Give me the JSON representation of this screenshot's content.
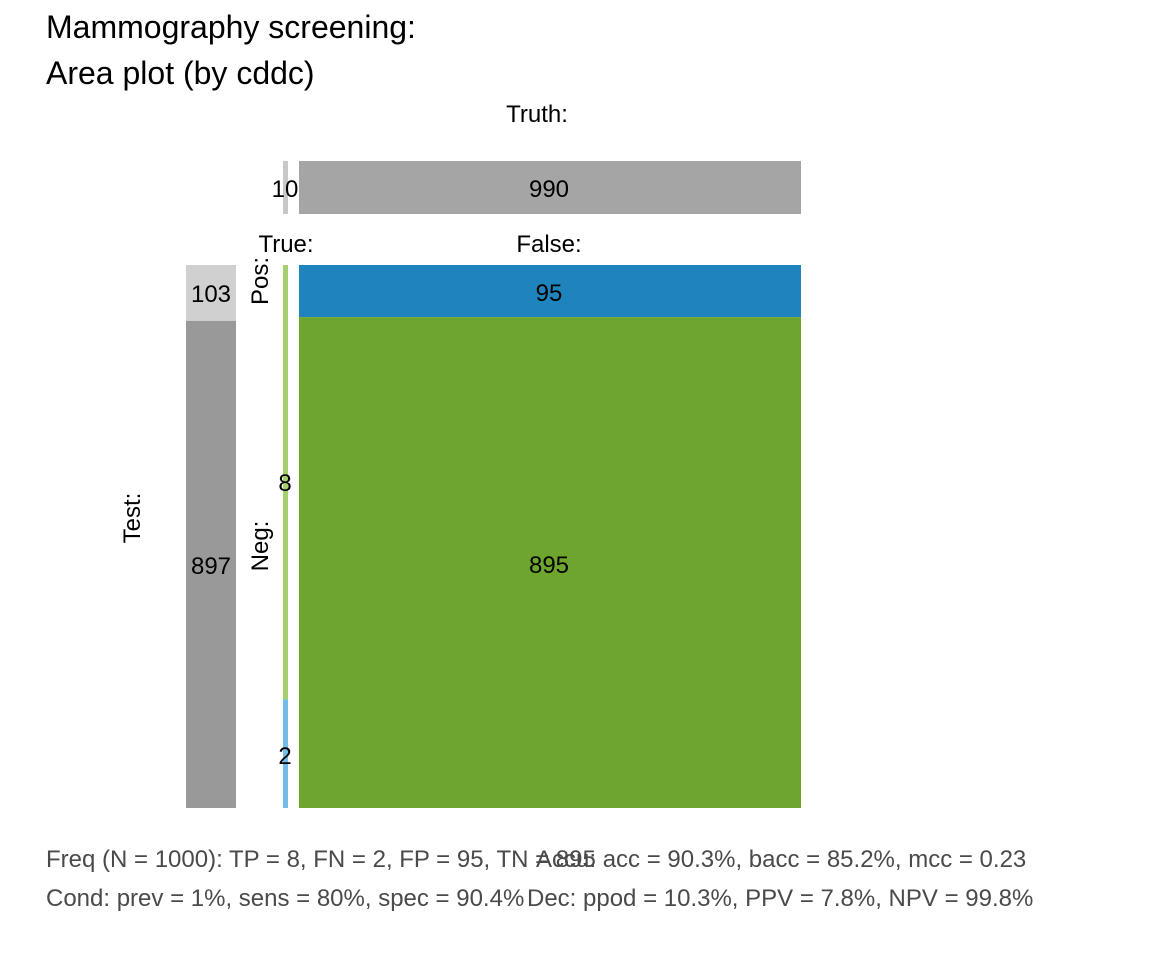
{
  "chart_data": {
    "type": "area",
    "title": "Mammography screening:",
    "subtitle": "Area plot (by cddc)",
    "N": 1000,
    "labels": {
      "truth": "Truth:",
      "test": "Test:",
      "cond_true": "True:",
      "cond_false": "False:",
      "dec_pos": "Pos:",
      "dec_neg": "Neg:"
    },
    "truth_bar": {
      "cond_true": 10,
      "cond_false": 990
    },
    "test_bar": {
      "dec_pos": 103,
      "dec_neg": 897
    },
    "cells": {
      "hi": 8,
      "mi": 2,
      "fa": 95,
      "cr": 895
    },
    "value_labels": {
      "cond_true": "10",
      "cond_false": "990",
      "dec_pos": "103",
      "dec_neg": "897",
      "hi": "8",
      "mi": "2",
      "fa": "95",
      "cr": "895"
    },
    "colors": {
      "cond_true": "#c8c8c8",
      "cond_false": "#a5a5a5",
      "dec_pos": "#d0d0d0",
      "dec_neg": "#999999",
      "hi": "#a6d06f",
      "mi": "#73bce8",
      "fa": "#1f84bd",
      "cr": "#6ea52f"
    },
    "footnotes": [
      "Freq (N = 1000):  TP = 8, FN = 2, FP = 95, TN = 895",
      "Accu:  acc = 90.3%, bacc = 85.2%, mcc = 0.23",
      "Cond:  prev = 1%, sens = 80%, spec = 90.4%",
      "Dec:  ppod = 10.3%, PPV = 7.8%, NPV = 99.8%"
    ]
  }
}
